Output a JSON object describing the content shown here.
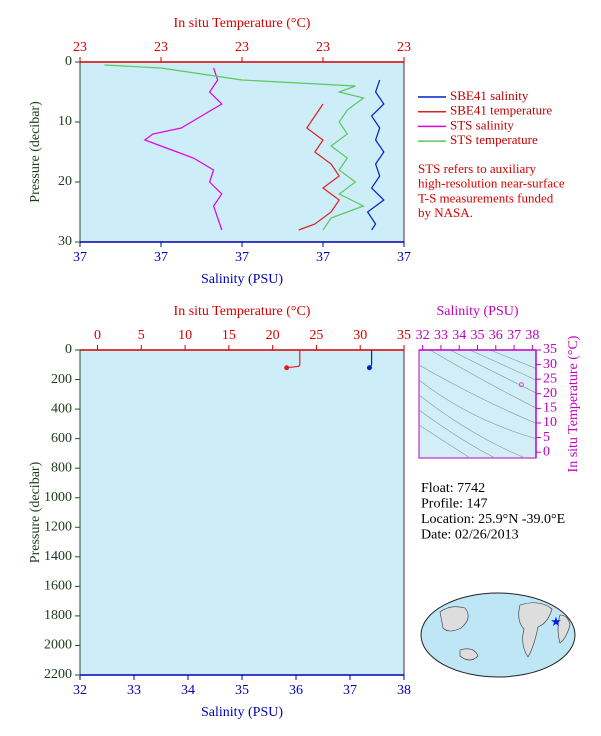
{
  "chart_data": [
    {
      "type": "line",
      "top_axis": {
        "label": "In situ Temperature (°C)",
        "color": "#d40000",
        "lim": [
          22.8,
          23.2
        ],
        "ticks": [
          {
            "value": 22.8,
            "label": "23"
          },
          {
            "value": 22.9,
            "label": "23"
          },
          {
            "value": 23.0,
            "label": "23"
          },
          {
            "value": 23.1,
            "label": "23"
          },
          {
            "value": 23.2,
            "label": "23"
          }
        ]
      },
      "bottom_axis": {
        "label": "Salinity (PSU)",
        "color": "#0000b0",
        "lim": [
          36.6,
          37.4
        ],
        "ticks": [
          {
            "value": 36.6,
            "label": "37"
          },
          {
            "value": 36.8,
            "label": "37"
          },
          {
            "value": 37.0,
            "label": "37"
          },
          {
            "value": 37.2,
            "label": "37"
          },
          {
            "value": 37.4,
            "label": "37"
          }
        ]
      },
      "ylabel": "Pressure (decibar)",
      "ylim": [
        0,
        30
      ],
      "yticks": [
        0,
        10,
        20,
        30
      ],
      "legend": "right",
      "series": [
        {
          "name": "SBE41 salinity",
          "color": "#0020c8",
          "axis": "bottom",
          "pressure": [
            3,
            5,
            7,
            9,
            11,
            13,
            15,
            17,
            19,
            21,
            23,
            25,
            27,
            28
          ],
          "values": [
            37.34,
            37.33,
            37.35,
            37.32,
            37.34,
            37.33,
            37.35,
            37.33,
            37.34,
            37.32,
            37.35,
            37.31,
            37.33,
            37.32
          ]
        },
        {
          "name": "SBE41 temperature",
          "color": "#e02020",
          "axis": "top",
          "pressure": [
            7,
            9,
            11,
            13,
            15,
            17,
            19,
            21,
            23,
            25,
            27,
            28
          ],
          "values": [
            23.1,
            23.09,
            23.08,
            23.1,
            23.09,
            23.11,
            23.12,
            23.1,
            23.12,
            23.11,
            23.09,
            23.07
          ]
        },
        {
          "name": "STS salinity",
          "color": "#e000e0",
          "axis": "bottom",
          "pressure": [
            1,
            3,
            5,
            7,
            9,
            11,
            12,
            13,
            14,
            15,
            16,
            18,
            20,
            22,
            24,
            26,
            28
          ],
          "values": [
            36.93,
            36.94,
            36.92,
            36.95,
            36.9,
            36.85,
            36.78,
            36.76,
            36.8,
            36.84,
            36.88,
            36.93,
            36.92,
            36.95,
            36.93,
            36.94,
            36.95
          ]
        },
        {
          "name": "STS temperature",
          "color": "#5cc85c",
          "axis": "top",
          "pressure": [
            0.5,
            1,
            2,
            3,
            4,
            5,
            6,
            8,
            10,
            12,
            14,
            16,
            18,
            20,
            22,
            24,
            26,
            28
          ],
          "values": [
            22.83,
            22.9,
            22.95,
            23.0,
            23.14,
            23.12,
            23.15,
            23.13,
            23.12,
            23.13,
            23.11,
            23.13,
            23.12,
            23.14,
            23.12,
            23.15,
            23.11,
            23.1
          ]
        }
      ],
      "annotation": [
        "STS refers to auxiliary",
        "high-resolution near-surface",
        "T-S measurements funded",
        "by NASA."
      ]
    },
    {
      "type": "line",
      "top_axis": {
        "label": "In situ Temperature (°C)",
        "color": "#d40000",
        "lim": [
          -2,
          35
        ],
        "ticks": [
          0,
          5,
          10,
          15,
          20,
          25,
          30,
          35
        ]
      },
      "bottom_axis": {
        "label": "Salinity (PSU)",
        "color": "#0000b0",
        "lim": [
          32,
          38
        ],
        "ticks": [
          32,
          33,
          34,
          35,
          36,
          37,
          38
        ]
      },
      "ylabel": "Pressure (decibar)",
      "ylim": [
        0,
        2200
      ],
      "yticks": [
        0,
        200,
        400,
        600,
        800,
        {
          "value": 1000,
          "label": "1000"
        },
        1200,
        1400,
        1600,
        1800,
        2000,
        2200
      ],
      "marker_at_end": true,
      "series": [
        {
          "color": "#e02020",
          "axis": "top",
          "pressure": [
            0,
            20,
            40,
            60,
            80,
            100,
            110,
            120
          ],
          "values": [
            23.1,
            23.1,
            23.1,
            23.1,
            23.1,
            23.1,
            23.0,
            21.6
          ]
        },
        {
          "color": "#0020c8",
          "axis": "bottom",
          "pressure": [
            0,
            20,
            40,
            60,
            80,
            100,
            110,
            120
          ],
          "values": [
            37.4,
            37.4,
            37.4,
            37.4,
            37.4,
            37.4,
            37.38,
            37.36
          ]
        }
      ]
    },
    {
      "type": "scatter",
      "top_axis": {
        "label": "Salinity (PSU)",
        "color": "#c000c0",
        "lim": [
          31.8,
          38.2
        ],
        "ticks": [
          32,
          33,
          34,
          35,
          36,
          37,
          38
        ]
      },
      "ylabel": "In situ Temperature (°C)",
      "ylim": [
        -2,
        35
      ],
      "yticks": [
        0,
        5,
        10,
        15,
        20,
        25,
        30,
        35
      ],
      "series": [
        {
          "color": "#e040e0",
          "x": [
            37.4
          ],
          "values": [
            23.1
          ]
        }
      ]
    }
  ],
  "info": [
    "Float:  7742",
    "Profile:  147",
    "Location:  25.9°N  -39.0°E",
    "Date:  02/26/2013"
  ]
}
